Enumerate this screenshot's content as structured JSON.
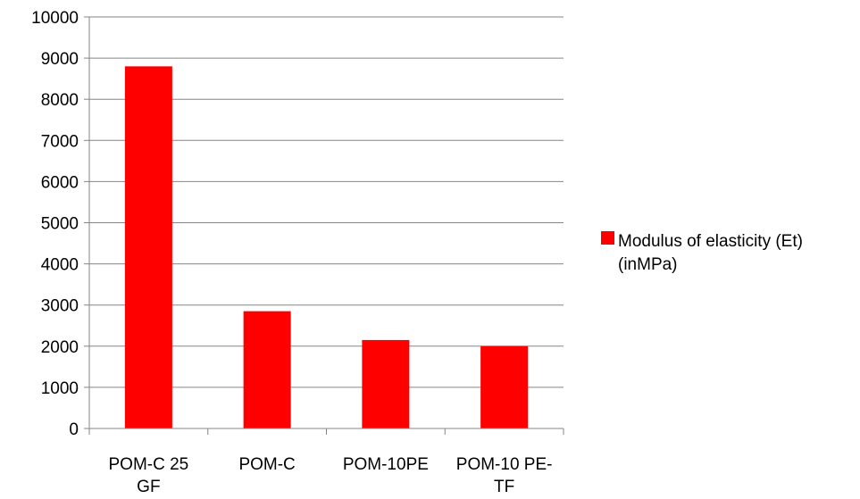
{
  "chart_data": {
    "type": "bar",
    "categories": [
      [
        "POM-C 25",
        "GF"
      ],
      [
        "POM-C"
      ],
      [
        "POM-10PE"
      ],
      [
        "POM-10 PE-",
        "TF"
      ]
    ],
    "series": [
      {
        "name": "Modulus of elasticity (Et) (inMPa)",
        "values": [
          8800,
          2850,
          2150,
          2000
        ],
        "color": "#ff0000"
      }
    ],
    "ylim": [
      0,
      10000
    ],
    "yticks": [
      0,
      1000,
      2000,
      3000,
      4000,
      5000,
      6000,
      7000,
      8000,
      9000,
      10000
    ],
    "grid": true,
    "legend": {
      "position": "right",
      "lines": [
        "Modulus of elasticity (Et)",
        "(inMPa)"
      ]
    },
    "title": "",
    "xlabel": "",
    "ylabel": ""
  }
}
